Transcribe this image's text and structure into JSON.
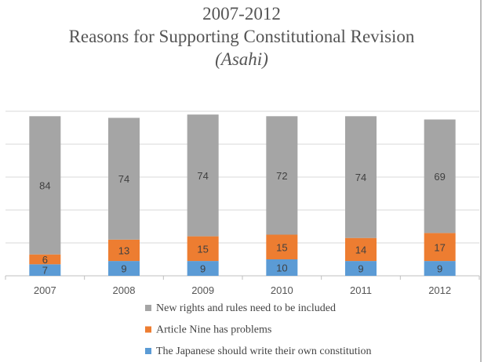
{
  "chart_data": {
    "type": "bar",
    "stacked": true,
    "title": [
      "2007-2012",
      "Reasons for Supporting Constitutional Revision",
      "(Asahi)"
    ],
    "categories": [
      "2007",
      "2008",
      "2009",
      "2010",
      "2011",
      "2012"
    ],
    "series": [
      {
        "name": "The Japanese should write their own constitution",
        "color": "#5B9BD5",
        "values": [
          7,
          9,
          9,
          10,
          9,
          9
        ]
      },
      {
        "name": "Article Nine has problems",
        "color": "#ED7D31",
        "values": [
          6,
          13,
          15,
          15,
          14,
          17
        ]
      },
      {
        "name": "New rights and rules need to be included",
        "color": "#A5A5A5",
        "values": [
          84,
          74,
          74,
          72,
          74,
          69
        ]
      }
    ],
    "ylim": [
      0,
      100
    ],
    "grid": true,
    "y_axis_labels_shown": false,
    "legend_position": "bottom",
    "legend_order": [
      2,
      1,
      0
    ]
  }
}
